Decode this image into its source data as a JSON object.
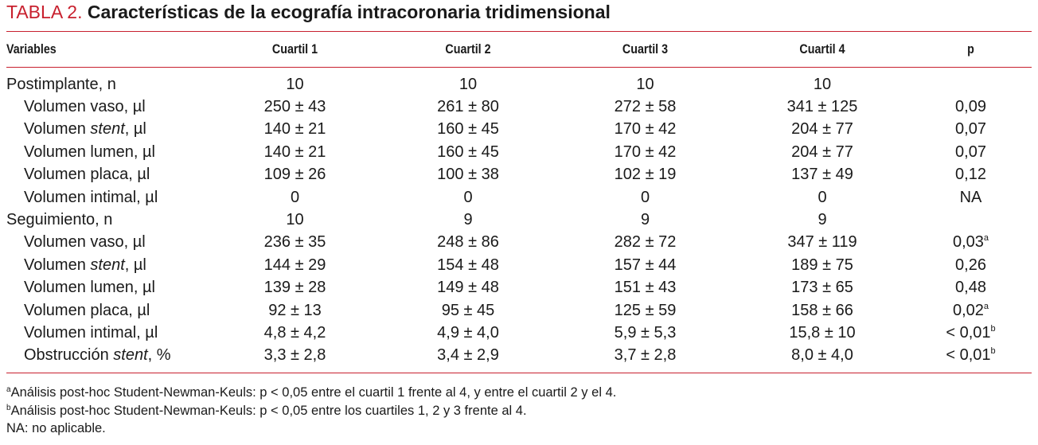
{
  "title": {
    "label": "TABLA 2.",
    "text": "Características de la ecografía intracoronaria tridimensional"
  },
  "headers": [
    "Variables",
    "Cuartil 1",
    "Cuartil 2",
    "Cuartil 3",
    "Cuartil 4",
    "p"
  ],
  "rows": [
    {
      "label": "Postimplante, n",
      "sub": false,
      "values": [
        "10",
        "10",
        "10",
        "10"
      ],
      "p": "",
      "p_sup": ""
    },
    {
      "label_pre": "Volumen vaso, µl",
      "label_it": "",
      "label_post": "",
      "sub": true,
      "values": [
        "250 ± 43",
        "261 ± 80",
        "272 ± 58",
        "341 ± 125"
      ],
      "p": "0,09",
      "p_sup": ""
    },
    {
      "label_pre": "Volumen ",
      "label_it": "stent",
      "label_post": ", µl",
      "sub": true,
      "values": [
        "140 ± 21",
        "160 ± 45",
        "170 ± 42",
        "204 ± 77"
      ],
      "p": "0,07",
      "p_sup": ""
    },
    {
      "label_pre": "Volumen lumen, µl",
      "label_it": "",
      "label_post": "",
      "sub": true,
      "values": [
        "140 ± 21",
        "160 ± 45",
        "170 ± 42",
        "204 ± 77"
      ],
      "p": "0,07",
      "p_sup": ""
    },
    {
      "label_pre": "Volumen placa, µl",
      "label_it": "",
      "label_post": "",
      "sub": true,
      "values": [
        "109 ± 26",
        "100 ± 38",
        "102 ± 19",
        "137 ± 49"
      ],
      "p": "0,12",
      "p_sup": ""
    },
    {
      "label_pre": "Volumen intimal, µl",
      "label_it": "",
      "label_post": "",
      "sub": true,
      "values": [
        "0",
        "0",
        "0",
        "0"
      ],
      "p": "NA",
      "p_sup": ""
    },
    {
      "label": "Seguimiento, n",
      "sub": false,
      "values": [
        "10",
        "9",
        "9",
        "9"
      ],
      "p": "",
      "p_sup": ""
    },
    {
      "label_pre": "Volumen vaso, µl",
      "label_it": "",
      "label_post": "",
      "sub": true,
      "values": [
        "236 ± 35",
        "248 ± 86",
        "282 ± 72",
        "347 ± 119"
      ],
      "p": "0,03",
      "p_sup": "a"
    },
    {
      "label_pre": "Volumen ",
      "label_it": "stent",
      "label_post": ", µl",
      "sub": true,
      "values": [
        "144 ± 29",
        "154 ± 48",
        "157 ± 44",
        "189 ± 75"
      ],
      "p": "0,26",
      "p_sup": ""
    },
    {
      "label_pre": "Volumen lumen, µl",
      "label_it": "",
      "label_post": "",
      "sub": true,
      "values": [
        "139 ± 28",
        "149 ± 48",
        "151 ± 43",
        "173 ± 65"
      ],
      "p": "0,48",
      "p_sup": ""
    },
    {
      "label_pre": "Volumen placa, µl",
      "label_it": "",
      "label_post": "",
      "sub": true,
      "values": [
        "92 ± 13",
        "95 ± 45",
        "125 ± 59",
        "158 ± 66"
      ],
      "p": "0,02",
      "p_sup": "a"
    },
    {
      "label_pre": "Volumen intimal, µl",
      "label_it": "",
      "label_post": "",
      "sub": true,
      "values": [
        "4,8 ± 4,2",
        "4,9 ± 4,0",
        "5,9 ± 5,3",
        "15,8 ± 10"
      ],
      "p": "< 0,01",
      "p_sup": "b"
    },
    {
      "label_pre": "Obstrucción ",
      "label_it": "stent",
      "label_post": ", %",
      "sub": true,
      "values": [
        "3,3 ± 2,8",
        "3,4 ± 2,9",
        "3,7 ± 2,8",
        "8,0 ± 4,0"
      ],
      "p": "< 0,01",
      "p_sup": "b"
    }
  ],
  "footnotes": [
    {
      "mark": "a",
      "text": "Análisis post-hoc Student-Newman-Keuls: p < 0,05 entre el cuartil 1 frente al 4, y entre el cuartil 2 y el 4."
    },
    {
      "mark": "b",
      "text": "Análisis post-hoc Student-Newman-Keuls: p < 0,05 entre los cuartiles 1, 2 y 3 frente al 4."
    },
    {
      "mark": "",
      "text": "NA: no aplicable."
    }
  ],
  "colors": {
    "accent": "#c8202e",
    "text": "#1a1a1a"
  }
}
